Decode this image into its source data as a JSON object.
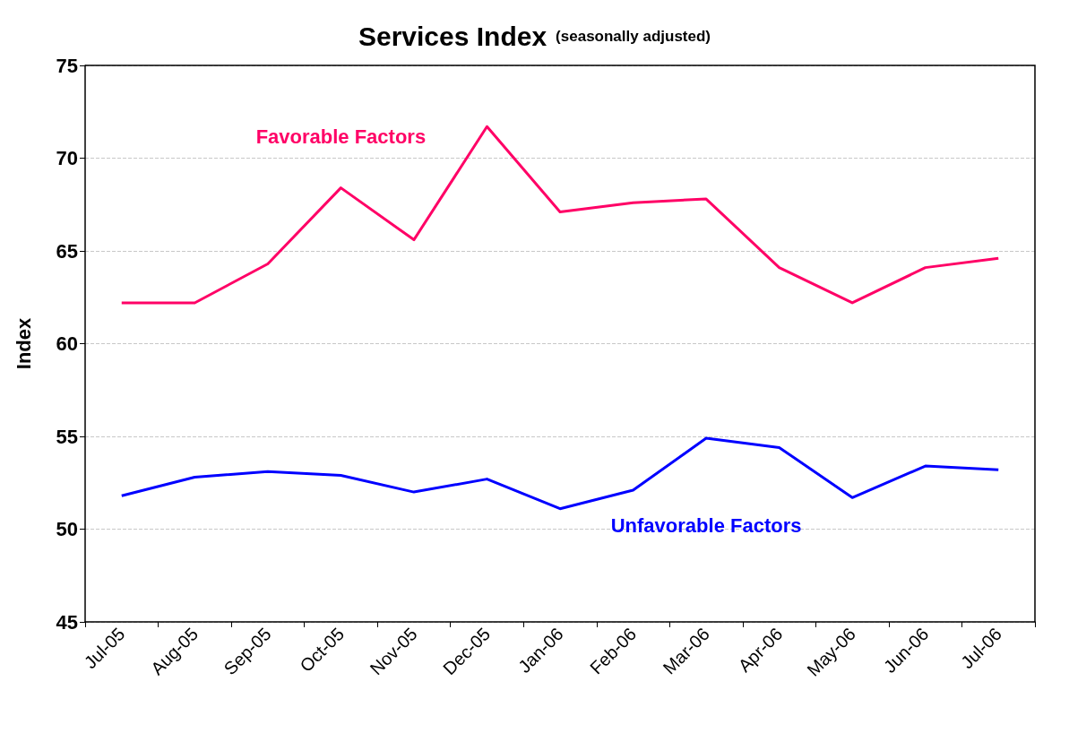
{
  "chart_data": {
    "type": "line",
    "title": "Services Index",
    "subtitle": "(seasonally adjusted)",
    "ylabel": "Index",
    "categories": [
      "Jul-05",
      "Aug-05",
      "Sep-05",
      "Oct-05",
      "Nov-05",
      "Dec-05",
      "Jan-06",
      "Feb-06",
      "Mar-06",
      "Apr-06",
      "May-06",
      "Jun-06",
      "Jul-06"
    ],
    "series": [
      {
        "name": "Favorable Factors",
        "color": "#ff0066",
        "values": [
          62.2,
          62.2,
          64.3,
          68.4,
          65.6,
          71.7,
          67.1,
          67.6,
          67.8,
          64.1,
          62.2,
          64.1,
          64.6
        ]
      },
      {
        "name": "Unfavorable Factors",
        "color": "#0000ff",
        "values": [
          51.8,
          52.8,
          53.1,
          52.9,
          52.0,
          52.7,
          51.1,
          52.1,
          54.9,
          54.4,
          51.7,
          53.4,
          53.2
        ]
      }
    ],
    "ylim": [
      45,
      75
    ],
    "yticks": [
      45,
      50,
      55,
      60,
      65,
      70,
      75
    ],
    "grid": "y",
    "legend": false,
    "marker": "none",
    "line_style": "solid"
  }
}
